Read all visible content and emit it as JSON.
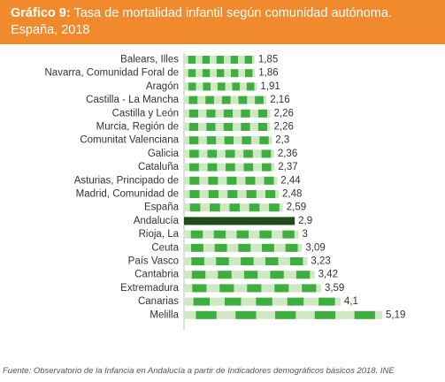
{
  "header": {
    "label": "Gráfico 9:",
    "title": "Tasa de mortalidad infantil según comunidad autónoma. España, 2018"
  },
  "colors": {
    "header_bg": "#f08a2c",
    "bar_light": "#cfe8c2",
    "bar_dark": "#3dae3f",
    "highlight": "#1e4d1a"
  },
  "source": "Fuente: Observatorio de la Infancia en Andalucía a partir de Indicadores demográficos básicos 2018. INE",
  "chart_data": {
    "type": "bar",
    "orientation": "horizontal",
    "title": "Tasa de mortalidad infantil según comunidad autónoma. España, 2018",
    "xlim": [
      0,
      5.19
    ],
    "categories": [
      "Balears, Illes",
      "Navarra, Comunidad Foral de",
      "Aragón",
      "Castilla - La Mancha",
      "Castilla y León",
      "Murcia, Región de",
      "Comunitat Valenciana",
      "Galicia",
      "Cataluña",
      "Asturias, Principado de",
      "Madrid, Comunidad de",
      "España",
      "Andalucía",
      "Rioja, La",
      "Ceuta",
      "País Vasco",
      "Cantabria",
      "Extremadura",
      "Canarias",
      "Melilla"
    ],
    "values": [
      1.85,
      1.86,
      1.91,
      2.16,
      2.26,
      2.26,
      2.3,
      2.36,
      2.37,
      2.44,
      2.48,
      2.59,
      2.9,
      3,
      3.09,
      3.23,
      3.42,
      3.59,
      4.1,
      5.19
    ],
    "value_labels": [
      "1,85",
      "1,86",
      "1,91",
      "2,16",
      "2,26",
      "2,26",
      "2,3",
      "2,36",
      "2,37",
      "2,44",
      "2,48",
      "2,59",
      "2,9",
      "3",
      "3,09",
      "3,23",
      "3,42",
      "3,59",
      "4,1",
      "5,19"
    ],
    "highlight_category": "Andalucía",
    "grid": false,
    "legend": "none"
  }
}
